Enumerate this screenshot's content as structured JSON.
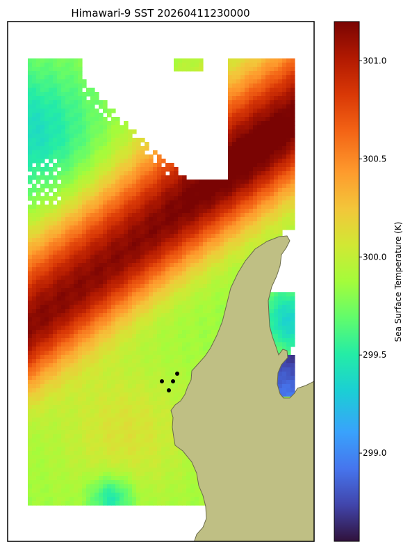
{
  "chart_data": {
    "type": "heatmap",
    "title": "Himawari-9 SST 20260411230000",
    "colorbar": {
      "label": "Sea Surface Temperature (K)",
      "range": [
        298.55,
        301.2
      ],
      "ticks": [
        {
          "value": 299.0,
          "label": "299.0"
        },
        {
          "value": 299.5,
          "label": "299.5"
        },
        {
          "value": 300.0,
          "label": "300.0"
        },
        {
          "value": 300.5,
          "label": "300.5"
        },
        {
          "value": 301.0,
          "label": "301.0"
        }
      ],
      "colormap": "turbo"
    },
    "field_description": {
      "max_band_value": 301.15,
      "min_value_east_bay": 298.7,
      "land_color": "#bfbf84",
      "coast_color": "#6b6b4a",
      "point_color": "#000000"
    },
    "markers": {
      "count": 4,
      "kind": "black dots"
    },
    "grid": false,
    "legend": "colorbar right"
  }
}
